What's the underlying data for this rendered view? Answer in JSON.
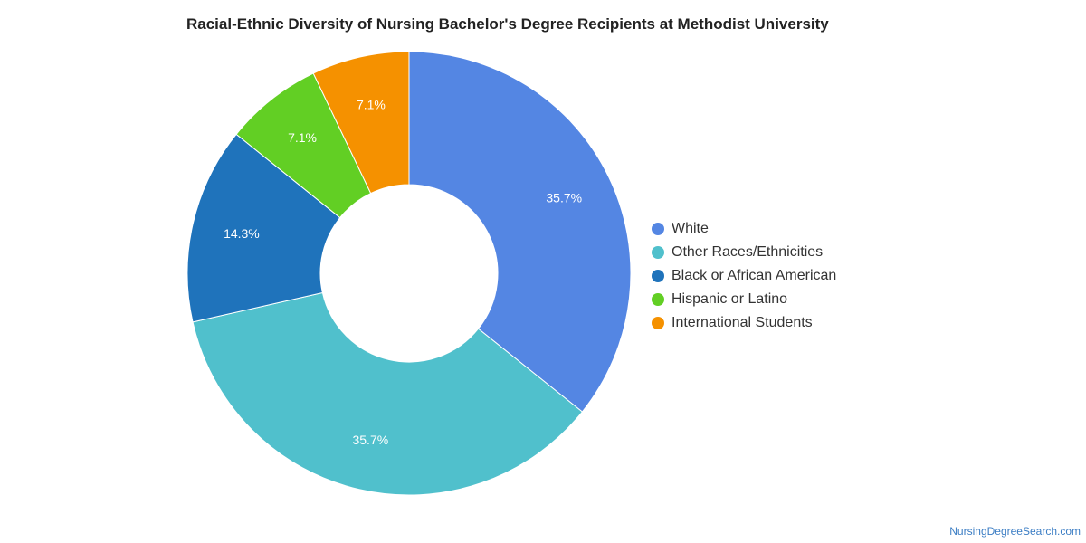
{
  "title": "Racial-Ethnic Diversity of Nursing Bachelor's Degree Recipients at Methodist University",
  "watermark": "NursingDegreeSearch.com",
  "chart_data": {
    "type": "pie",
    "donut": true,
    "legend_position": "right",
    "slices": [
      {
        "label": "White",
        "value": 35.7,
        "display": "35.7%",
        "color": "#5486e3"
      },
      {
        "label": "Other Races/Ethnicities",
        "value": 35.7,
        "display": "35.7%",
        "color": "#50c0cc"
      },
      {
        "label": "Black or African American",
        "value": 14.3,
        "display": "14.3%",
        "color": "#1f73bb"
      },
      {
        "label": "Hispanic or Latino",
        "value": 7.1,
        "display": "7.1%",
        "color": "#62cf24"
      },
      {
        "label": "International Students",
        "value": 7.1,
        "display": "7.1%",
        "color": "#f59100"
      }
    ]
  }
}
